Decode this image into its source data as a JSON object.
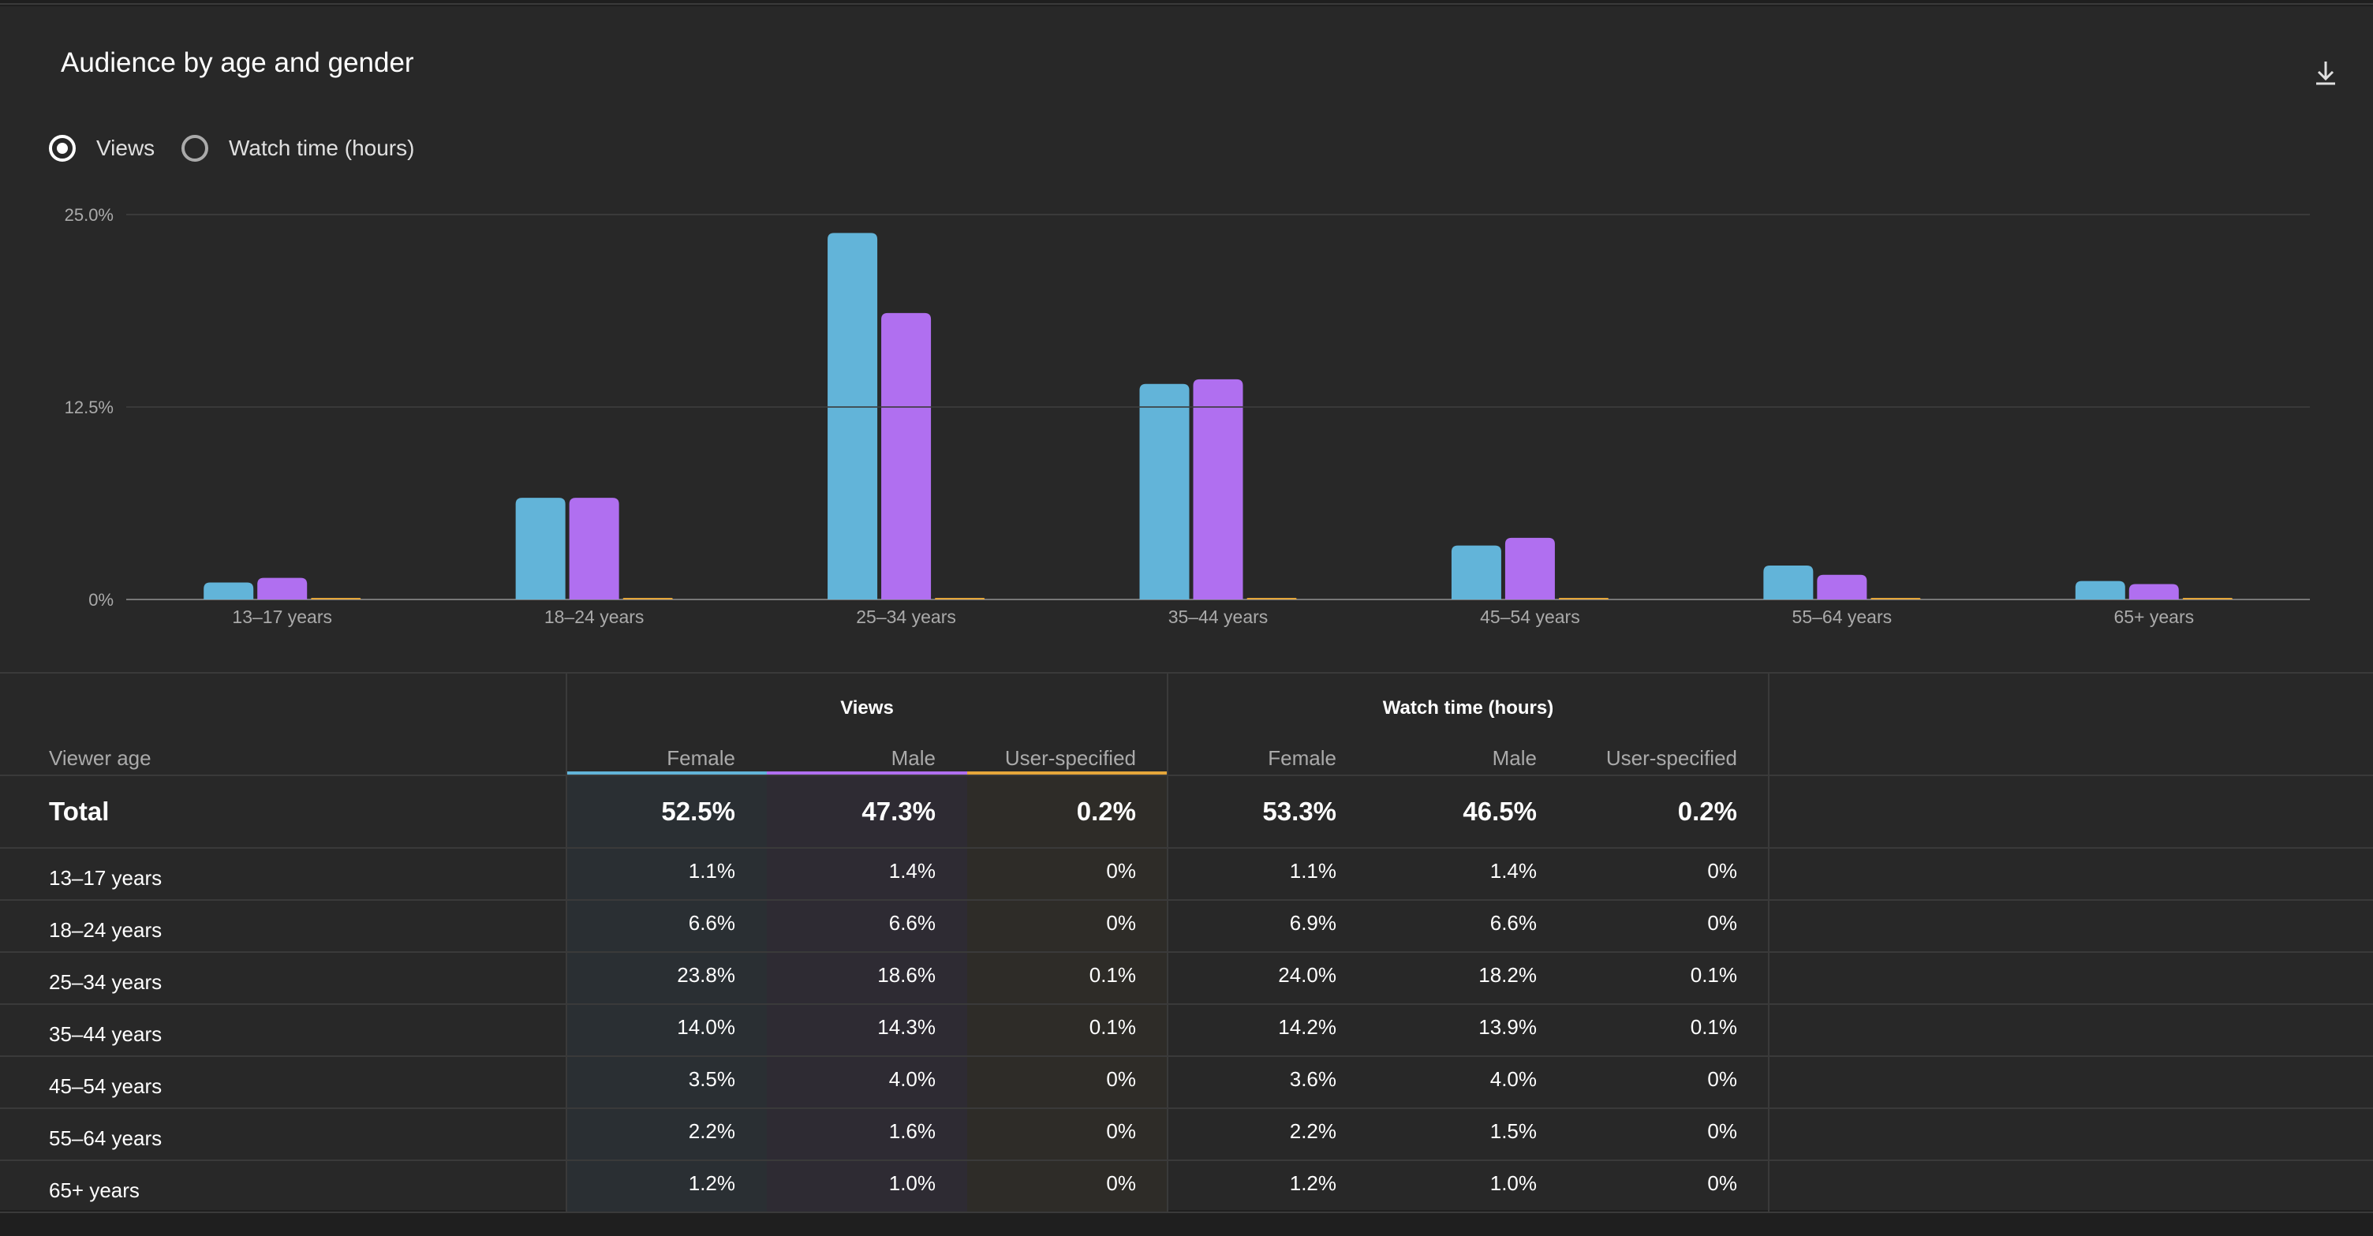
{
  "card": {
    "title": "Audience by age and gender",
    "download_icon": "download-icon"
  },
  "metric_toggle": {
    "options": [
      {
        "label": "Views",
        "selected": true
      },
      {
        "label": "Watch time (hours)",
        "selected": false
      }
    ]
  },
  "colors": {
    "female": "#62b4d9",
    "male": "#b06ff0",
    "user_specified": "#e5a63a",
    "background": "#282828",
    "grid": "#3a3a3a"
  },
  "chart_data": {
    "type": "bar",
    "categories": [
      "13–17 years",
      "18–24 years",
      "25–34 years",
      "35–44 years",
      "45–54 years",
      "55–64 years",
      "65+ years"
    ],
    "series": [
      {
        "values": [
          1.1,
          6.6,
          23.8,
          14.0,
          3.5,
          2.2,
          1.2
        ]
      },
      {
        "values": [
          1.4,
          6.6,
          18.6,
          14.3,
          4.0,
          1.6,
          1.0
        ]
      },
      {
        "values": [
          0,
          0,
          0.1,
          0.1,
          0,
          0,
          0
        ]
      }
    ],
    "y_ticks": [
      "0%",
      "12.5%",
      "25.0%"
    ],
    "ylim": [
      0,
      25
    ],
    "grid": true,
    "legend": "none"
  },
  "table": {
    "row_header": "Viewer age",
    "groups": [
      {
        "label": "Views",
        "columns": [
          "Female",
          "Male",
          "User-specified"
        ]
      },
      {
        "label": "Watch time (hours)",
        "columns": [
          "Female",
          "Male",
          "User-specified"
        ]
      }
    ],
    "total": {
      "label": "Total",
      "values": [
        "52.5%",
        "47.3%",
        "0.2%",
        "53.3%",
        "46.5%",
        "0.2%"
      ]
    },
    "rows": [
      {
        "age": "13–17 years",
        "values": [
          "1.1%",
          "1.4%",
          "0%",
          "1.1%",
          "1.4%",
          "0%"
        ]
      },
      {
        "age": "18–24 years",
        "values": [
          "6.6%",
          "6.6%",
          "0%",
          "6.9%",
          "6.6%",
          "0%"
        ]
      },
      {
        "age": "25–34 years",
        "values": [
          "23.8%",
          "18.6%",
          "0.1%",
          "24.0%",
          "18.2%",
          "0.1%"
        ]
      },
      {
        "age": "35–44 years",
        "values": [
          "14.0%",
          "14.3%",
          "0.1%",
          "14.2%",
          "13.9%",
          "0.1%"
        ]
      },
      {
        "age": "45–54 years",
        "values": [
          "3.5%",
          "4.0%",
          "0%",
          "3.6%",
          "4.0%",
          "0%"
        ]
      },
      {
        "age": "55–64 years",
        "values": [
          "2.2%",
          "1.6%",
          "0%",
          "2.2%",
          "1.5%",
          "0%"
        ]
      },
      {
        "age": "65+ years",
        "values": [
          "1.2%",
          "1.0%",
          "0%",
          "1.2%",
          "1.0%",
          "0%"
        ]
      }
    ]
  }
}
